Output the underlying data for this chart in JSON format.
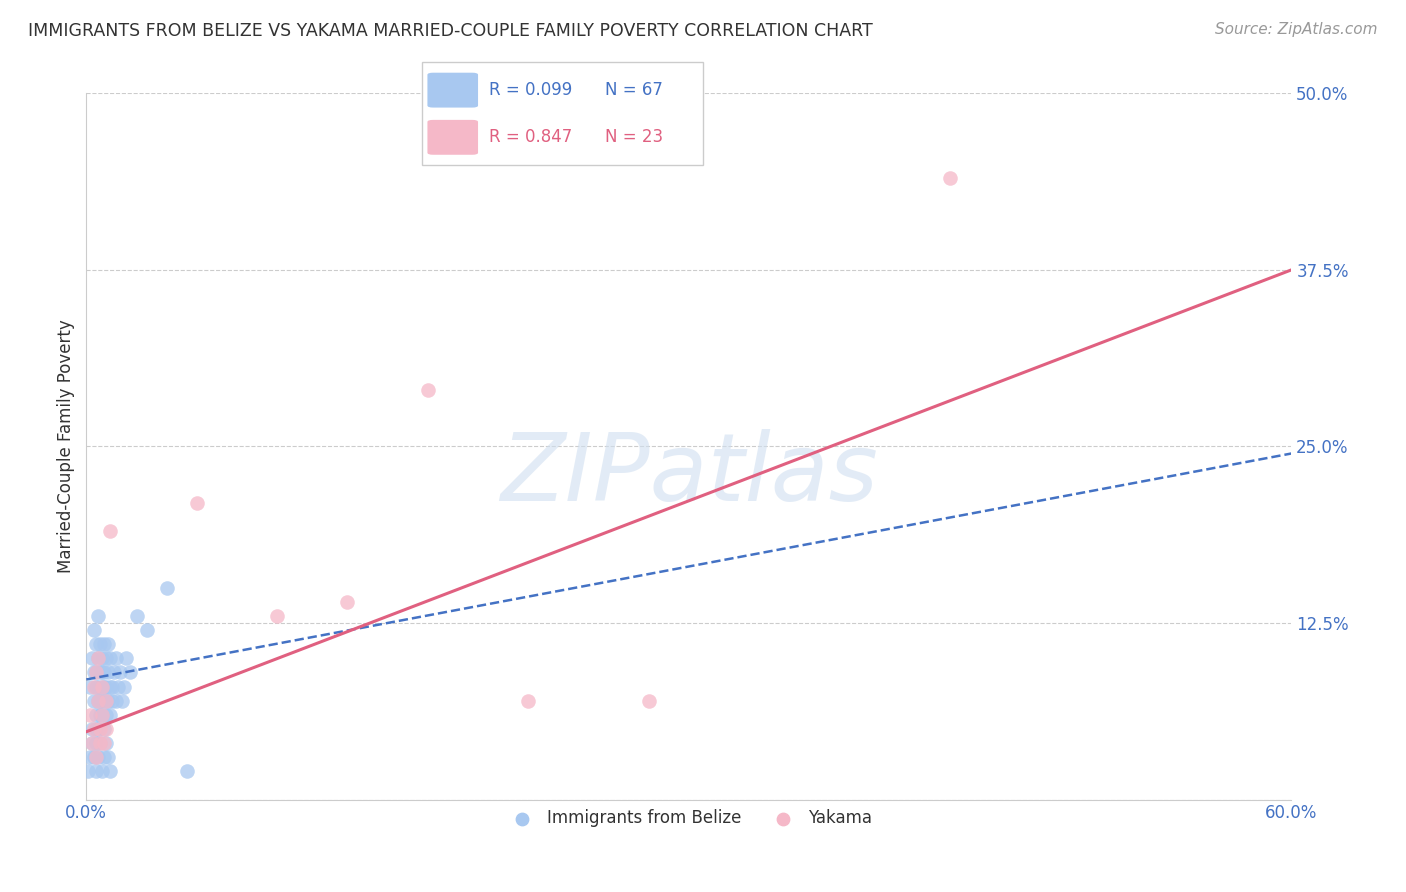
{
  "title": "IMMIGRANTS FROM BELIZE VS YAKAMA MARRIED-COUPLE FAMILY POVERTY CORRELATION CHART",
  "source": "Source: ZipAtlas.com",
  "ylabel": "Married-Couple Family Poverty",
  "xlim": [
    0.0,
    0.6
  ],
  "ylim": [
    0.0,
    0.5
  ],
  "xticks": [
    0.0,
    0.1,
    0.2,
    0.3,
    0.4,
    0.5,
    0.6
  ],
  "xticklabels": [
    "0.0%",
    "",
    "",
    "",
    "",
    "",
    "60.0%"
  ],
  "yticks": [
    0.0,
    0.125,
    0.25,
    0.375,
    0.5
  ],
  "yticklabels": [
    "",
    "12.5%",
    "25.0%",
    "37.5%",
    "50.0%"
  ],
  "legend_r_blue": "R = 0.099",
  "legend_n_blue": "N = 67",
  "legend_r_pink": "R = 0.847",
  "legend_n_pink": "N = 23",
  "blue_scatter_color": "#A8C8F0",
  "pink_scatter_color": "#F5B8C8",
  "blue_line_color": "#4472C4",
  "pink_line_color": "#E06080",
  "watermark": "ZIPatlas",
  "watermark_color": "#D0DFF0",
  "blue_scatter_x": [
    0.002,
    0.003,
    0.003,
    0.004,
    0.004,
    0.004,
    0.005,
    0.005,
    0.005,
    0.005,
    0.005,
    0.006,
    0.006,
    0.006,
    0.006,
    0.006,
    0.007,
    0.007,
    0.007,
    0.007,
    0.008,
    0.008,
    0.008,
    0.008,
    0.008,
    0.009,
    0.009,
    0.009,
    0.009,
    0.01,
    0.01,
    0.01,
    0.01,
    0.011,
    0.011,
    0.011,
    0.012,
    0.012,
    0.012,
    0.013,
    0.013,
    0.014,
    0.015,
    0.015,
    0.016,
    0.017,
    0.018,
    0.019,
    0.02,
    0.022,
    0.001,
    0.002,
    0.003,
    0.004,
    0.005,
    0.005,
    0.006,
    0.007,
    0.008,
    0.009,
    0.01,
    0.011,
    0.012,
    0.025,
    0.03,
    0.04,
    0.05
  ],
  "blue_scatter_y": [
    0.08,
    0.1,
    0.05,
    0.09,
    0.07,
    0.12,
    0.08,
    0.06,
    0.11,
    0.09,
    0.04,
    0.07,
    0.1,
    0.08,
    0.05,
    0.13,
    0.07,
    0.09,
    0.06,
    0.11,
    0.08,
    0.1,
    0.06,
    0.09,
    0.07,
    0.08,
    0.11,
    0.05,
    0.09,
    0.07,
    0.1,
    0.06,
    0.08,
    0.09,
    0.07,
    0.11,
    0.08,
    0.06,
    0.1,
    0.08,
    0.07,
    0.09,
    0.1,
    0.07,
    0.08,
    0.09,
    0.07,
    0.08,
    0.1,
    0.09,
    0.02,
    0.03,
    0.04,
    0.03,
    0.02,
    0.05,
    0.03,
    0.04,
    0.02,
    0.03,
    0.04,
    0.03,
    0.02,
    0.13,
    0.12,
    0.15,
    0.02
  ],
  "pink_scatter_x": [
    0.002,
    0.003,
    0.004,
    0.004,
    0.005,
    0.005,
    0.006,
    0.006,
    0.007,
    0.007,
    0.008,
    0.008,
    0.009,
    0.01,
    0.01,
    0.012,
    0.055,
    0.095,
    0.13,
    0.17,
    0.22,
    0.28,
    0.43
  ],
  "pink_scatter_y": [
    0.06,
    0.04,
    0.08,
    0.05,
    0.09,
    0.03,
    0.07,
    0.1,
    0.05,
    0.04,
    0.06,
    0.08,
    0.04,
    0.07,
    0.05,
    0.19,
    0.21,
    0.13,
    0.14,
    0.29,
    0.07,
    0.07,
    0.44
  ],
  "blue_trend_x": [
    0.0,
    0.6
  ],
  "blue_trend_y": [
    0.085,
    0.245
  ],
  "pink_trend_x": [
    0.0,
    0.6
  ],
  "pink_trend_y": [
    0.048,
    0.375
  ]
}
